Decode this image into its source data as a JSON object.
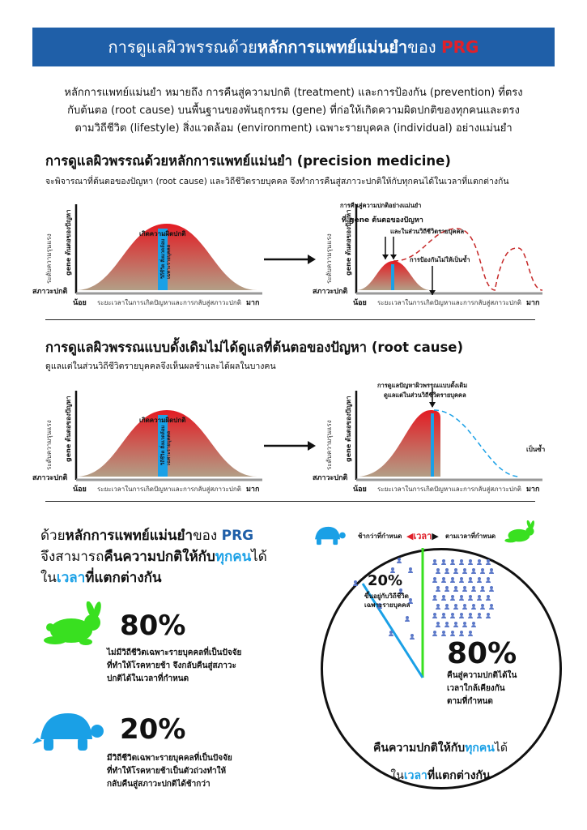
{
  "banner": {
    "prefix": "การดูแลผิวพรรณด้วย",
    "bold": "หลักการแพทย์แม่นยำ",
    "middle": "ของ ",
    "brand": "PRG"
  },
  "intro": {
    "line1": "หลักการแพทย์แม่นยำ หมายถึง การคืนสู่ความปกติ (treatment) และการป้องกัน (prevention) ที่ตรง",
    "line2": "กับต้นตอ (root cause) บนพื้นฐานของพันธุกรรม (gene) ที่ก่อให้เกิดความผิดปกติของทุกคนและตรง",
    "line3": "ตามวิถีชีวิต (lifestyle) สิ่งแวดล้อม (environment) เฉพาะรายบุคคล (individual) อย่างแม่นยำ"
  },
  "section1": {
    "title": "การดูแลผิวพรรณด้วยหลักการแพทย์แม่นยำ (precision medicine)",
    "subtitle": "จะพิจารณาที่ต้นตอของปัญหา (root cause) และวิถีชีวิตรายบุคคล จึงทำการคืนสู่สภาวะปกติให้กับทุกคนได้ในเวลาที่แตกต่างกัน"
  },
  "section2": {
    "title": "การดูแลผิวพรรณแบบดั้งเดิมไม่ได้ดูแลที่ต้นตอของปัญหา (root cause)",
    "subtitle": "ดูแลแต่ในส่วนวิถีชีวิตรายบุคคลจึงเห็นผลช้าและได้ผลในบางคน"
  },
  "chart_labels": {
    "y_axis": "ระดับความรุนแรง",
    "gene_axis": "gene ต้นตอของปัญหา",
    "baseline": "สภาวะปกติ",
    "less": "น้อย",
    "more": "มาก",
    "x_axis": "ระยะเวลาในการเกิดปัญหาและการกลับสู่สภาวะปกติ",
    "peak": "เกิดความผิดปกติ",
    "lifestyle_band": "วิถีชีวิต สิ่งแวดล้อม เฉพาะรายบุคคล"
  },
  "chart1b": {
    "ann1": "การคืนสู่ความปกติอย่างแม่นยำ",
    "ann2": "ที่ gene ต้นตอของปัญหา",
    "ann3": "และในส่วนวิถีชีวิตรายบุคคล",
    "ann4": "การป้องกันไม่ให้เป็นซ้ำ"
  },
  "chart2b": {
    "ann1": "การดูแลปัญหาผิวพรรณแบบดั้งเดิม",
    "ann2": "ดูแลแต่ในส่วนวิถีชีวิตรายบุคคล",
    "recur": "เป็นซ้ำ"
  },
  "bottom": {
    "l1a": "ด้วย",
    "l1b": "หลักการแพทย์แม่นยำ",
    "l1c": "ของ ",
    "l1d": "PRG",
    "l2a": "จึงสามารถ",
    "l2b": "คืนความปกติให้กับ",
    "l2c": "ทุกคน",
    "l2d": "ได้",
    "l3a": "ใน",
    "l3b": "เวลา",
    "l3c": "ที่แตกต่างกัน",
    "stat1_value": "80%",
    "stat1_l1": "ไม่มีวิถีชีวิตเฉพาะรายบุคคลที่เป็นปัจจัย",
    "stat1_l2": "ที่ทำให้โรคหายช้า จึงกลับคืนสู่สภาวะ",
    "stat1_l3": "ปกติได้ในเวลาที่กำหนด",
    "stat2_value": "20%",
    "stat2_l1": "มีวิถีชีวิตเฉพาะรายบุคคลที่เป็นปัจจัย",
    "stat2_l2": "ที่ทำให้โรคหายช้าเป็นตัวถ่วงทำให้",
    "stat2_l3": "กลับคืนสู่สภาวะปกติได้ช้ากว่า"
  },
  "circle": {
    "slower": "ช้ากว่าที่กำหนด",
    "time": "เวลา",
    "ontime": "ตามเวลาที่กำหนด",
    "p20": "20%",
    "p20_l1": "ขึ้นอยู่กับวิถีชีวิต",
    "p20_l2": "เฉพาะรายบุคคล",
    "p80": "80%",
    "p80_l1": "คืนสู่ความปกติได้ใน",
    "p80_l2": "เวลาใกล้เคียงกัน",
    "p80_l3": "ตามที่กำหนด",
    "foot1a": "คืนความปกติให้กับ",
    "foot1b": "ทุกคน",
    "foot1c": "ได้",
    "foot2a": "ใน",
    "foot2b": "เวลา",
    "foot2c": "ที่แตกต่างกัน"
  },
  "colors": {
    "banner": "#1f5fa8",
    "brand_red": "#e0202a",
    "accent_blue": "#1aa0e6",
    "rabbit_green": "#39e020"
  }
}
